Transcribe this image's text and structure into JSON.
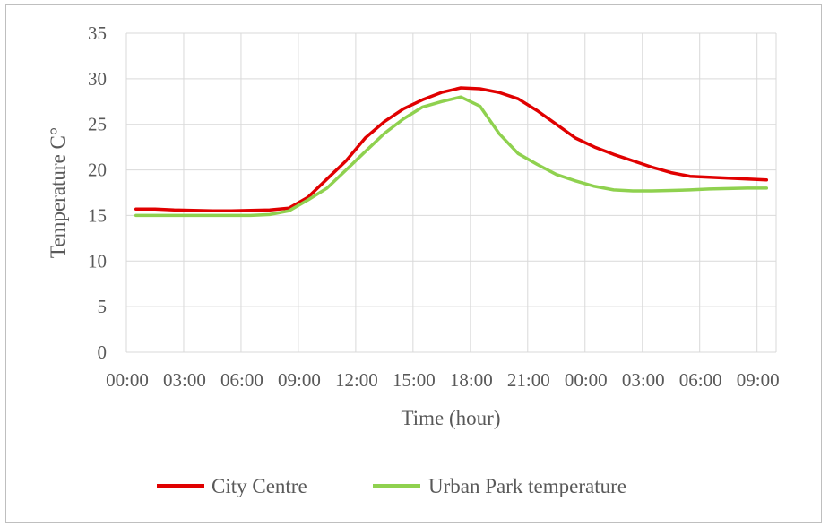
{
  "chart_data": {
    "type": "line",
    "title": "",
    "xlabel": "Time (hour)",
    "ylabel": "Temperature C°",
    "ylim": [
      0,
      35
    ],
    "yticks": [
      0,
      5,
      10,
      15,
      20,
      25,
      30,
      35
    ],
    "x_tick_labels": [
      "00:00",
      "03:00",
      "06:00",
      "09:00",
      "12:00",
      "15:00",
      "18:00",
      "21:00",
      "00:00",
      "03:00",
      "06:00",
      "09:00"
    ],
    "x_hours": [
      0.5,
      1.5,
      2.5,
      3.5,
      4.5,
      5.5,
      6.5,
      7.5,
      8.5,
      9.5,
      10.5,
      11.5,
      12.5,
      13.5,
      14.5,
      15.5,
      16.5,
      17.5,
      18.5,
      19.5,
      20.5,
      21.5,
      22.5,
      23.5,
      24.5,
      25.5,
      26.5,
      27.5,
      28.5,
      29.5,
      30.5,
      31.5,
      32.5,
      33.5
    ],
    "grid": true,
    "legend_position": "bottom",
    "series": [
      {
        "name": "City Centre",
        "color": "#e00000",
        "values": [
          15.7,
          15.7,
          15.6,
          15.55,
          15.5,
          15.5,
          15.55,
          15.6,
          15.8,
          17.0,
          19.0,
          21.0,
          23.5,
          25.3,
          26.7,
          27.7,
          28.5,
          29.0,
          28.9,
          28.5,
          27.8,
          26.5,
          25.0,
          23.5,
          22.5,
          21.7,
          21.0,
          20.3,
          19.7,
          19.3,
          19.2,
          19.1,
          19.0,
          18.9
        ]
      },
      {
        "name": "Urban Park temperature",
        "color": "#8fd14f",
        "values": [
          15.0,
          15.0,
          15.0,
          15.0,
          15.0,
          15.0,
          15.0,
          15.1,
          15.5,
          16.7,
          18.0,
          20.0,
          22.0,
          24.0,
          25.6,
          26.9,
          27.5,
          28.0,
          27.0,
          24.0,
          21.8,
          20.6,
          19.5,
          18.8,
          18.2,
          17.8,
          17.7,
          17.7,
          17.75,
          17.8,
          17.9,
          17.95,
          18.0,
          18.0
        ]
      }
    ]
  }
}
